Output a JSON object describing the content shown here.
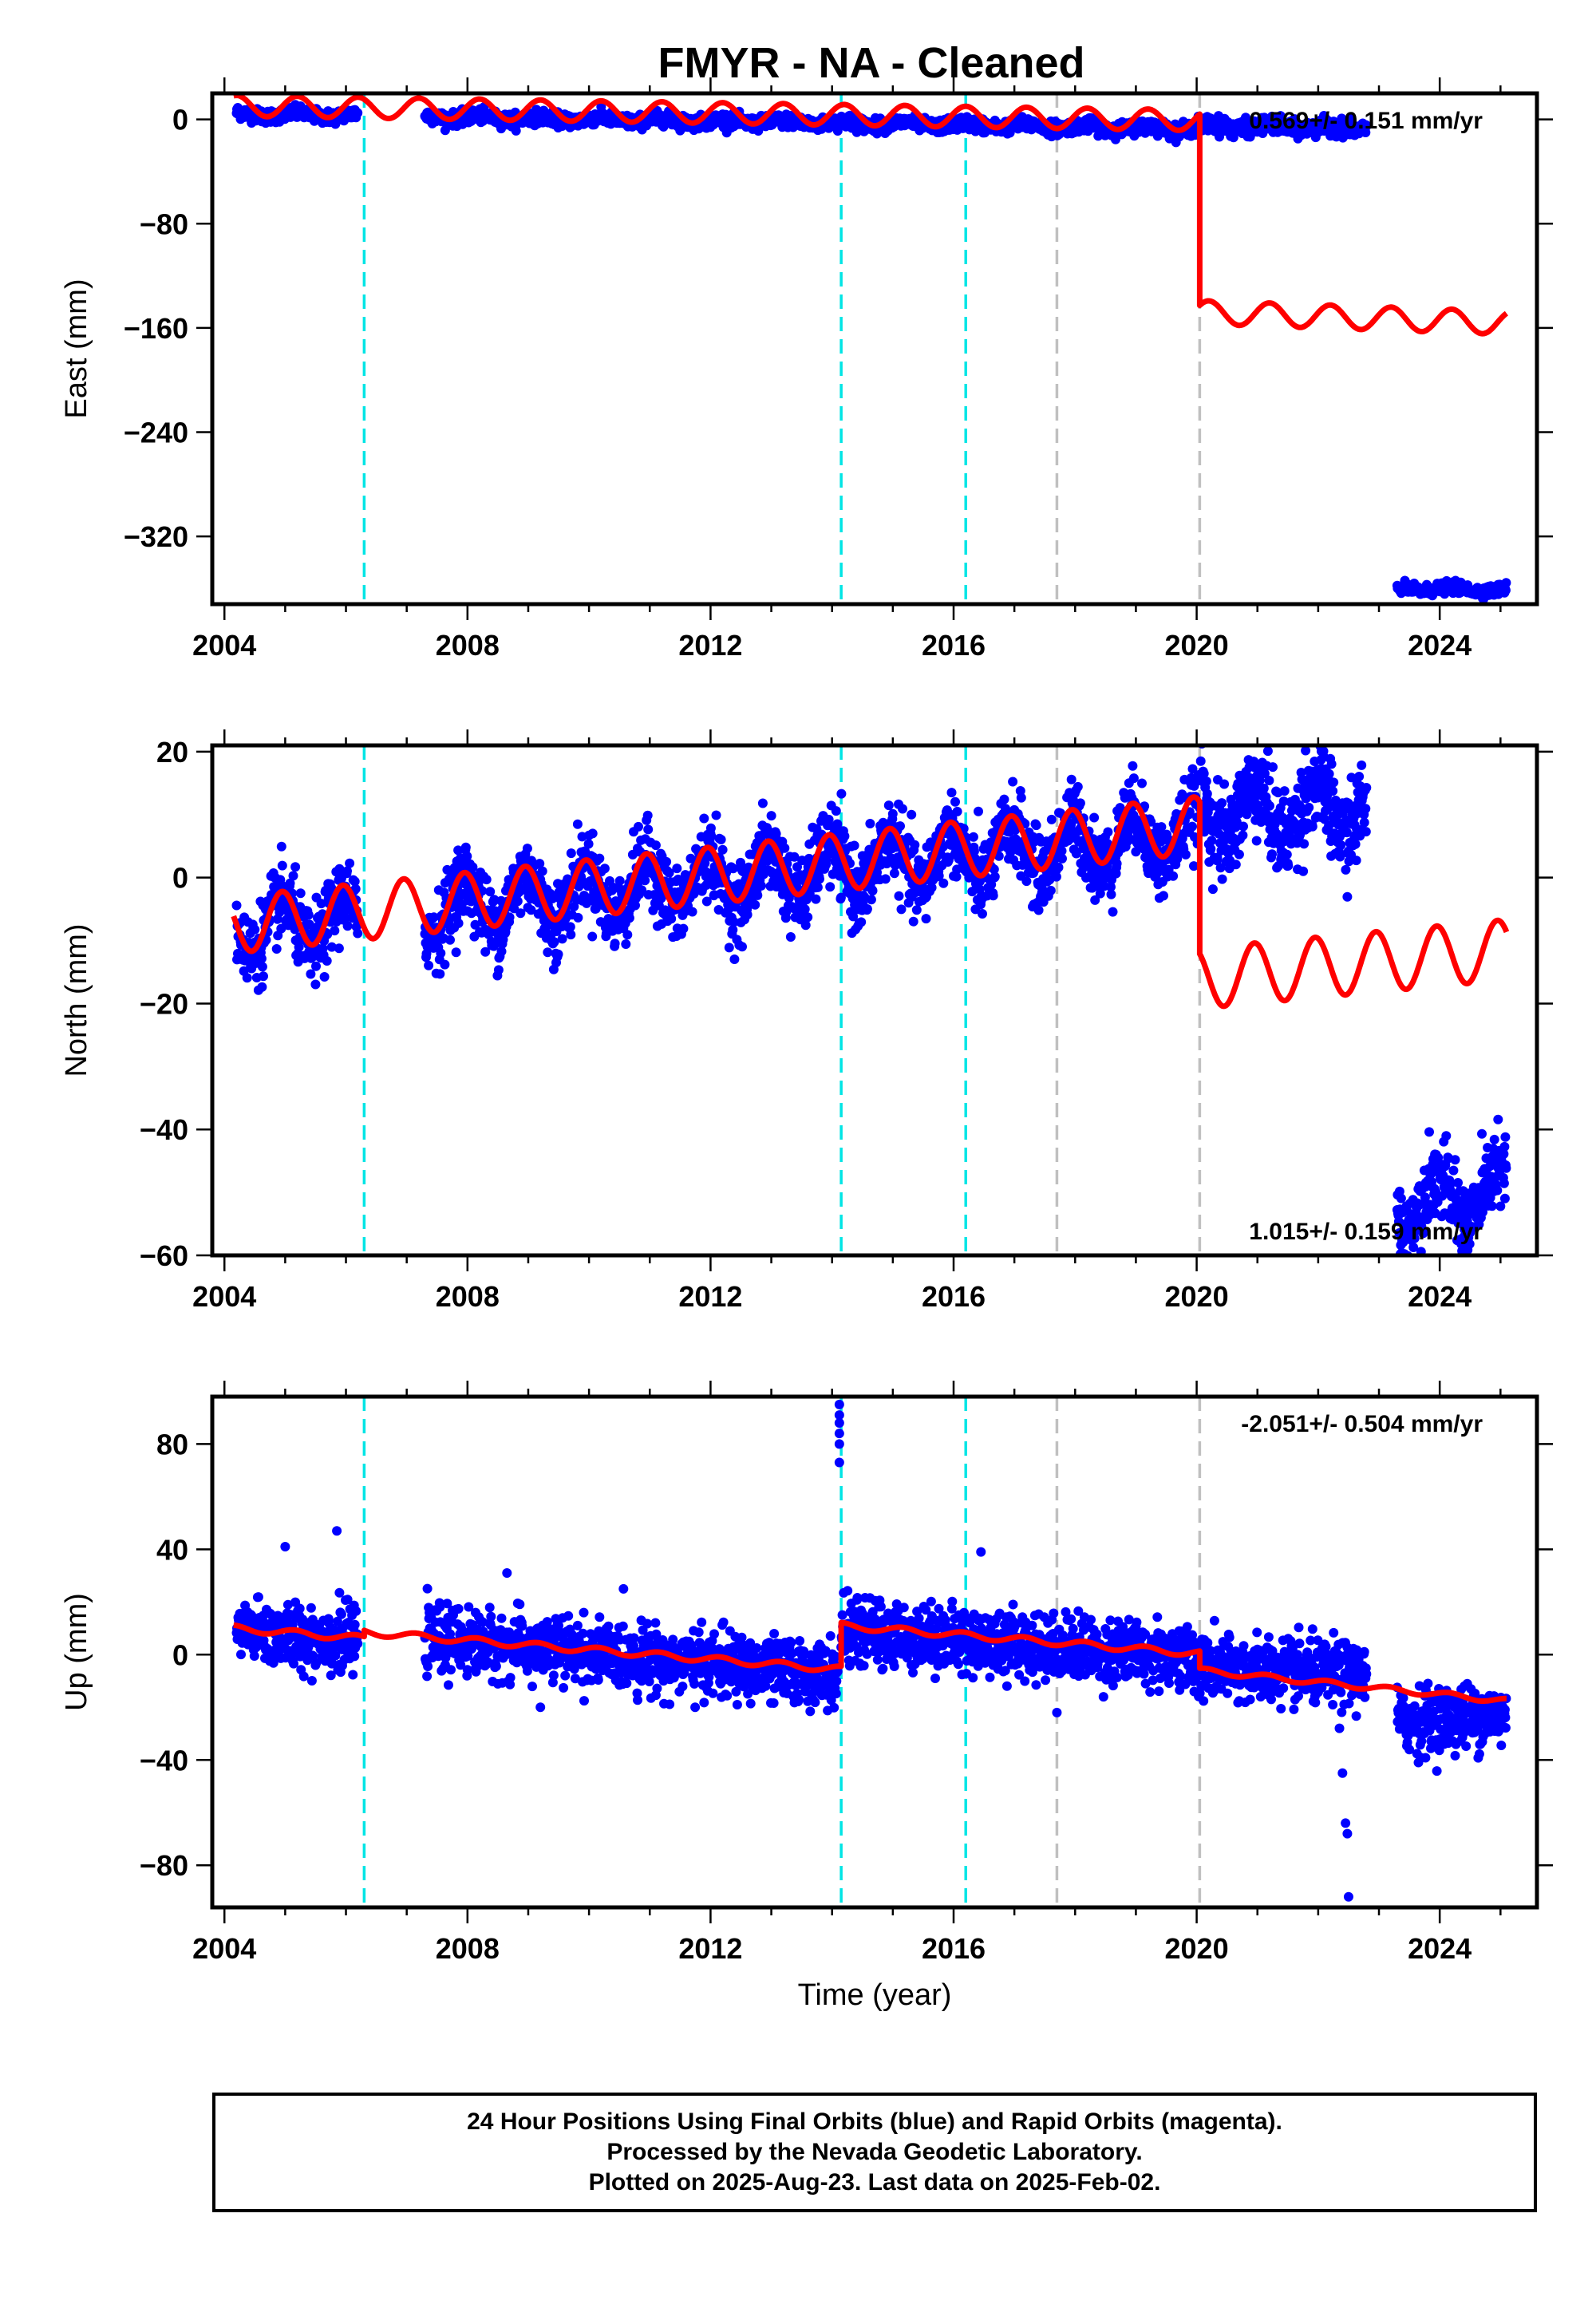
{
  "chart_data": {
    "type": "scatter",
    "title": "FMYR  - NA - Cleaned",
    "xlabel": "Time (year)",
    "xlim": [
      2003.8,
      2025.6
    ],
    "x_ticks": [
      2004,
      2008,
      2012,
      2016,
      2020,
      2024
    ],
    "colors": {
      "final_orbits": "#0000ff",
      "model": "#ff0000",
      "equipment_change": "#00e5e5",
      "earthquake": "#c0c0c0"
    },
    "vertical_lines": {
      "equipment_change": [
        2006.3,
        2014.15,
        2016.2
      ],
      "earthquake": [
        2017.7,
        2020.05
      ]
    },
    "panels": [
      {
        "name": "east",
        "ylabel": "East (mm)",
        "ylim": [
          -372,
          20
        ],
        "y_ticks": [
          0,
          -80,
          -160,
          -240,
          -320
        ],
        "rate_text": "0.569+/- 0.151 mm/yr",
        "rate_pos": "top-right",
        "data_segments": [
          {
            "x": [
              2004.2,
              2006.2
            ],
            "y": [
              4,
              3
            ],
            "noise": 2.5
          },
          {
            "x": [
              2007.3,
              2020.0
            ],
            "y": [
              2,
              -7
            ],
            "noise": 2.5
          },
          {
            "x": [
              2020.0,
              2022.8
            ],
            "y": [
              -5,
              -7
            ],
            "noise": 3
          },
          {
            "x": [
              2023.3,
              2025.1
            ],
            "y": [
              -360,
              -361
            ],
            "noise": 2
          }
        ],
        "model": [
          {
            "x": [
              2004.15,
              2020.05
            ],
            "y0": 10.5,
            "slope": -0.7,
            "amp": 8,
            "phase": 0.05
          },
          {
            "x": [
              2020.05,
              2025.1
            ],
            "y0": -148,
            "slope": -1.6,
            "amp": 9,
            "phase": 0.05
          }
        ]
      },
      {
        "name": "north",
        "ylabel": "North (mm)",
        "ylim": [
          -60,
          21
        ],
        "y_ticks": [
          20,
          0,
          -20,
          -40,
          -60
        ],
        "rate_text": "1.015+/- 0.159 mm/yr",
        "rate_pos": "bottom-right",
        "data_segments": [
          {
            "x": [
              2004.2,
              2006.2
            ],
            "y": [
              -8,
              -7
            ],
            "noise": 3
          },
          {
            "x": [
              2007.3,
              2020.0
            ],
            "y": [
              -5,
              7
            ],
            "noise": 3
          },
          {
            "x": [
              2020.0,
              2022.8
            ],
            "y": [
              10,
              11
            ],
            "noise": 3.5
          },
          {
            "x": [
              2023.3,
              2025.1
            ],
            "y": [
              -52,
              -50
            ],
            "noise": 3
          }
        ],
        "model": [
          {
            "x": [
              2004.15,
              2020.05
            ],
            "y0": -7.5,
            "slope": 1.0,
            "amp": 4.5,
            "phase": 0.3
          },
          {
            "x": [
              2020.05,
              2025.1
            ],
            "y0": -16,
            "slope": 0.9,
            "amp": 4.8,
            "phase": 0.3
          }
        ]
      },
      {
        "name": "up",
        "ylabel": "Up (mm)",
        "ylim": [
          -96,
          98
        ],
        "y_ticks": [
          80,
          40,
          0,
          -40,
          -80
        ],
        "rate_text": "-2.051+/- 0.504 mm/yr",
        "rate_pos": "top-right",
        "data_segments": [
          {
            "x": [
              2004.2,
              2006.2
            ],
            "y": [
              9,
              5
            ],
            "noise": 6
          },
          {
            "x": [
              2007.3,
              2014.1
            ],
            "y": [
              6,
              -8
            ],
            "noise": 6
          },
          {
            "x": [
              2014.15,
              2020.0
            ],
            "y": [
              9,
              -1
            ],
            "noise": 6
          },
          {
            "x": [
              2020.0,
              2022.8
            ],
            "y": [
              -5,
              -8
            ],
            "noise": 6
          },
          {
            "x": [
              2023.3,
              2025.1
            ],
            "y": [
              -25,
              -23
            ],
            "noise": 6
          }
        ],
        "outliers": [
          {
            "x": 2005.0,
            "y": 41
          },
          {
            "x": 2005.85,
            "y": 47
          },
          {
            "x": 2008.65,
            "y": 31
          },
          {
            "x": 2016.45,
            "y": 39
          },
          {
            "x": 2014.12,
            "y": 95
          },
          {
            "x": 2014.12,
            "y": 91
          },
          {
            "x": 2014.12,
            "y": 88
          },
          {
            "x": 2014.12,
            "y": 84
          },
          {
            "x": 2014.12,
            "y": 80
          },
          {
            "x": 2014.12,
            "y": 73
          },
          {
            "x": 2022.4,
            "y": -45
          },
          {
            "x": 2022.45,
            "y": -64
          },
          {
            "x": 2022.48,
            "y": -68
          },
          {
            "x": 2022.5,
            "y": -92
          },
          {
            "x": 2022.35,
            "y": -28
          },
          {
            "x": 2009.2,
            "y": -20
          },
          {
            "x": 2017.7,
            "y": -22
          },
          {
            "x": 2023.65,
            "y": -41
          }
        ],
        "model": [
          {
            "x": [
              2004.15,
              2006.3
            ],
            "y0": 10,
            "slope": -1.8,
            "amp": 1.2,
            "phase": 0.1
          },
          {
            "x": [
              2006.3,
              2014.15
            ],
            "y0": 8.5,
            "slope": -1.8,
            "amp": 1.2,
            "phase": 0.1
          },
          {
            "x": [
              2014.15,
              2020.05
            ],
            "y0": 11,
            "slope": -1.8,
            "amp": 1.2,
            "phase": 0.1
          },
          {
            "x": [
              2020.05,
              2025.1
            ],
            "y0": -6,
            "slope": -2.3,
            "amp": 1.0,
            "phase": 0.1
          }
        ]
      }
    ]
  },
  "footer": {
    "line1": "24 Hour Positions Using Final Orbits (blue) and Rapid Orbits (magenta).",
    "line2": "Processed by the Nevada Geodetic Laboratory.",
    "line3": "Plotted on 2025-Aug-23. Last data on 2025-Feb-02."
  }
}
